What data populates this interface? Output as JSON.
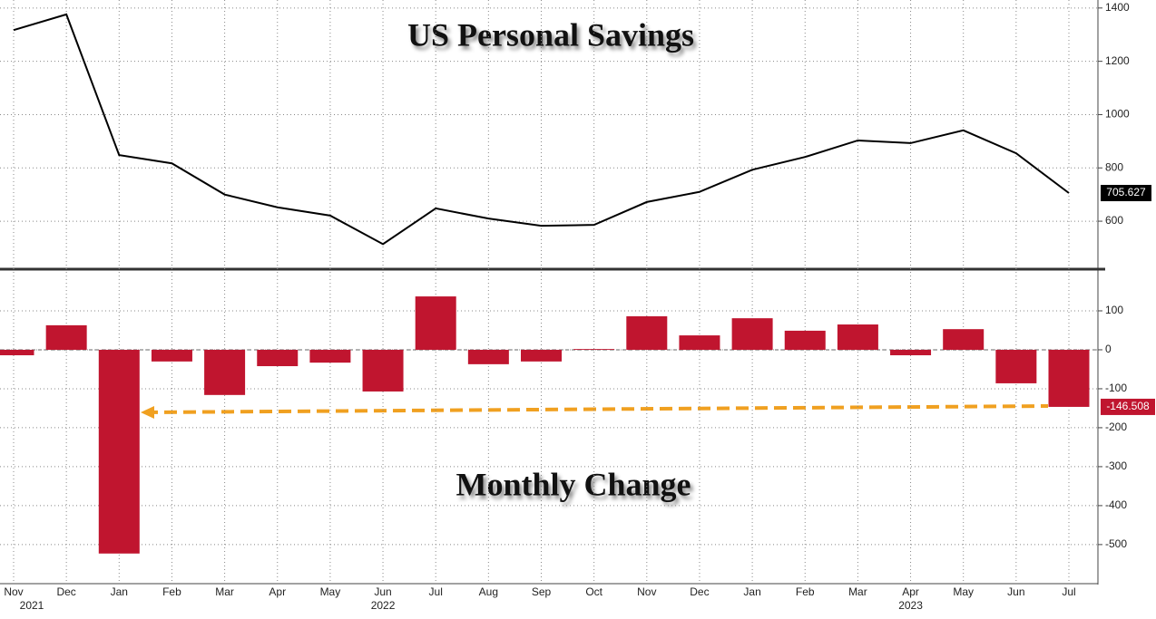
{
  "chart_data": [
    {
      "type": "line",
      "title": "US Personal Savings",
      "categories": [
        "Nov",
        "Dec",
        "Jan",
        "Feb",
        "Mar",
        "Apr",
        "May",
        "Jun",
        "Jul",
        "Aug",
        "Sep",
        "Oct",
        "Nov",
        "Dec",
        "Jan",
        "Feb",
        "Mar",
        "Apr",
        "May",
        "Jun",
        "Jul"
      ],
      "values": [
        1317,
        1376,
        848,
        817,
        700,
        652,
        621,
        514,
        648,
        610,
        583,
        586,
        672,
        710,
        793,
        841,
        903,
        893,
        941,
        855,
        705.627
      ],
      "color": "#000000",
      "ylim": [
        420,
        1430
      ],
      "yticks": [
        600,
        800,
        1000,
        1200,
        1400
      ],
      "grid": true
    },
    {
      "type": "bar",
      "title": "Monthly Change",
      "categories": [
        "Nov",
        "Dec",
        "Jan",
        "Feb",
        "Mar",
        "Apr",
        "May",
        "Jun",
        "Jul",
        "Aug",
        "Sep",
        "Oct",
        "Nov",
        "Dec",
        "Jan",
        "Feb",
        "Mar",
        "Apr",
        "May",
        "Jun",
        "Jul"
      ],
      "year_labels": [
        "2021",
        null,
        null,
        null,
        null,
        null,
        null,
        "2022",
        null,
        null,
        null,
        null,
        null,
        null,
        null,
        null,
        null,
        "2023",
        null,
        null,
        null
      ],
      "values": [
        -14,
        63,
        -523,
        -30,
        -116,
        -42,
        -33,
        -107,
        137,
        -37,
        -30,
        2,
        86,
        37,
        81,
        49,
        65,
        -14,
        53,
        -86,
        -146.508
      ],
      "color": "#c0152f",
      "ylim": [
        -598,
        200
      ],
      "yticks": [
        100,
        0,
        -100,
        -200,
        -300,
        -400,
        -500
      ],
      "grid": true
    }
  ]
}
